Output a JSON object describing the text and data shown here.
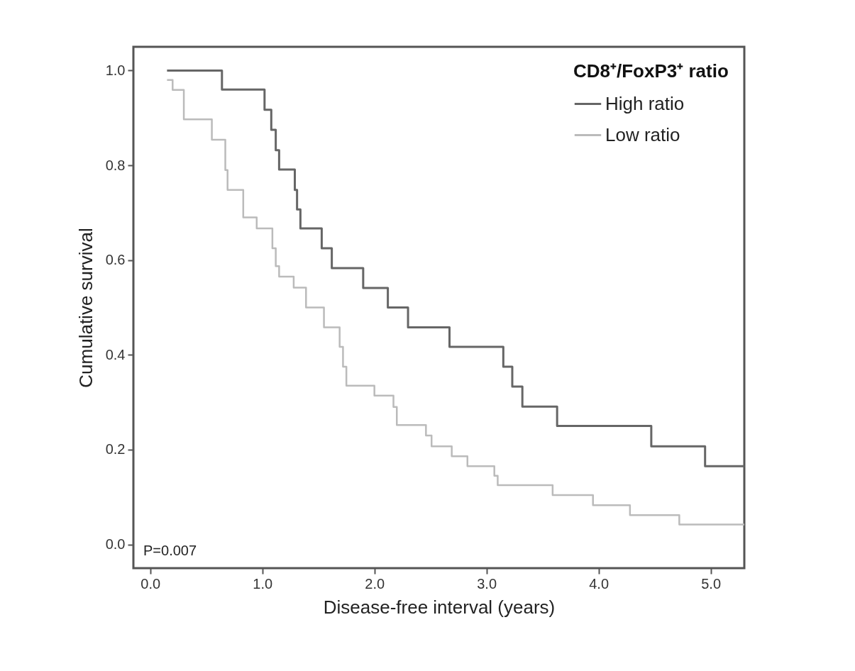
{
  "chart_data": {
    "type": "step",
    "xlabel": "Disease-free interval (years)",
    "ylabel": "Cumulative survival",
    "legend_title": "CD8⁺/FoxP3⁺ ratio",
    "legend": "top right",
    "grid": false,
    "xlim": [
      -0.15,
      5.3
    ],
    "xticks": [
      {
        "value": 0,
        "label": "0.0"
      },
      {
        "value": 1,
        "label": "1.0"
      },
      {
        "value": 2,
        "label": "2.0"
      },
      {
        "value": 3,
        "label": "3.0"
      },
      {
        "value": 4,
        "label": "4.0"
      },
      {
        "value": 5,
        "label": "5.0"
      }
    ],
    "ylim": [
      -0.05,
      1.05
    ],
    "yticks": [
      {
        "value": 0,
        "label": "0.0"
      },
      {
        "value": 0.2,
        "label": "0.2"
      },
      {
        "value": 0.4,
        "label": "0.4"
      },
      {
        "value": 0.6,
        "label": "0.6"
      },
      {
        "value": 0.8,
        "label": "0.8"
      },
      {
        "value": 1,
        "label": "1.0"
      }
    ],
    "series": [
      {
        "name": "High ratio",
        "color": "#666666",
        "x": [
          0.15,
          0.64,
          1.02,
          1.08,
          1.12,
          1.15,
          1.29,
          1.31,
          1.34,
          1.53,
          1.62,
          1.9,
          2.12,
          2.3,
          2.67,
          3.15,
          3.23,
          3.32,
          3.63,
          4.47,
          4.95,
          5.3
        ],
        "values": [
          1.0,
          0.96,
          0.917,
          0.875,
          0.832,
          0.791,
          0.748,
          0.707,
          0.667,
          0.625,
          0.583,
          0.541,
          0.5,
          0.458,
          0.417,
          0.375,
          0.333,
          0.291,
          0.25,
          0.207,
          0.165,
          0.165
        ]
      },
      {
        "name": "Low ratio",
        "color": "#bbbbbb",
        "x": [
          0.15,
          0.2,
          0.3,
          0.55,
          0.67,
          0.69,
          0.83,
          0.95,
          1.09,
          1.12,
          1.15,
          1.28,
          1.39,
          1.55,
          1.69,
          1.72,
          1.75,
          2.0,
          2.17,
          2.2,
          2.46,
          2.51,
          2.69,
          2.83,
          3.07,
          3.1,
          3.59,
          3.95,
          4.28,
          4.72,
          5.3
        ],
        "values": [
          0.98,
          0.959,
          0.897,
          0.854,
          0.79,
          0.748,
          0.69,
          0.667,
          0.625,
          0.587,
          0.565,
          0.542,
          0.5,
          0.458,
          0.417,
          0.375,
          0.335,
          0.314,
          0.29,
          0.252,
          0.23,
          0.207,
          0.186,
          0.165,
          0.145,
          0.125,
          0.104,
          0.083,
          0.062,
          0.042,
          0.042
        ]
      }
    ],
    "annotations": [
      "P=0.007"
    ]
  }
}
